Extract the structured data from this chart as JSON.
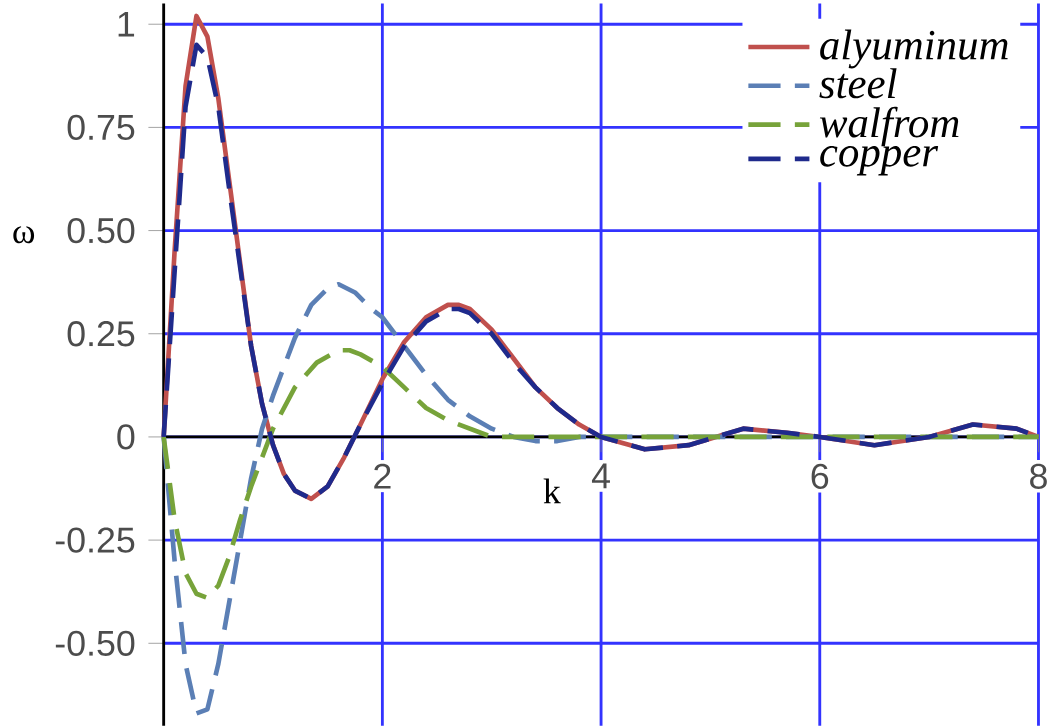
{
  "chart_data": {
    "type": "line",
    "xlabel": "k",
    "ylabel": "ω",
    "xlim": [
      0,
      8
    ],
    "ylim": [
      -0.7,
      1.05
    ],
    "xticks": [
      2,
      4,
      6,
      8
    ],
    "yticks": [
      1,
      0.75,
      {
        "value": 0.5,
        "label": "0.50"
      },
      0.25,
      0,
      -0.25,
      {
        "value": -0.5,
        "label": "-0.50"
      }
    ],
    "grid": true,
    "legend": "top right",
    "marker": "none",
    "series": [
      {
        "name": "alyuminum",
        "color": "#c0504d",
        "line_style": "solid",
        "x": [
          0,
          0.1,
          0.2,
          0.3,
          0.4,
          0.5,
          0.6,
          0.7,
          0.8,
          0.9,
          1.0,
          1.1,
          1.2,
          1.35,
          1.5,
          1.65,
          1.8,
          2.0,
          2.2,
          2.4,
          2.6,
          2.7,
          2.8,
          3.0,
          3.2,
          3.4,
          3.6,
          3.8,
          4.0,
          4.4,
          4.8,
          5.3,
          5.7,
          6.0,
          6.5,
          7.0,
          7.4,
          7.8,
          8.0
        ],
        "values": [
          0,
          0.45,
          0.85,
          1.02,
          0.97,
          0.82,
          0.62,
          0.42,
          0.22,
          0.08,
          -0.02,
          -0.09,
          -0.13,
          -0.15,
          -0.12,
          -0.05,
          0.03,
          0.14,
          0.23,
          0.29,
          0.32,
          0.32,
          0.31,
          0.26,
          0.19,
          0.12,
          0.07,
          0.03,
          0,
          -0.03,
          -0.02,
          0.02,
          0.01,
          0,
          -0.02,
          0,
          0.03,
          0.02,
          0
        ]
      },
      {
        "name": "steel",
        "color": "#5b7fb5",
        "line_style": "dashed",
        "x": [
          0,
          0.1,
          0.2,
          0.3,
          0.4,
          0.5,
          0.6,
          0.7,
          0.8,
          0.9,
          1.0,
          1.1,
          1.2,
          1.35,
          1.5,
          1.6,
          1.75,
          1.9,
          2.0,
          2.2,
          2.4,
          2.6,
          2.8,
          3.0,
          3.2,
          3.4,
          3.6,
          3.8,
          4.0,
          5,
          6,
          7,
          8
        ],
        "values": [
          0,
          -0.3,
          -0.55,
          -0.67,
          -0.66,
          -0.55,
          -0.4,
          -0.25,
          -0.1,
          0.02,
          0.1,
          0.17,
          0.24,
          0.32,
          0.36,
          0.37,
          0.35,
          0.31,
          0.29,
          0.22,
          0.15,
          0.09,
          0.05,
          0.02,
          0,
          -0.01,
          -0.01,
          0,
          0,
          0,
          0,
          0,
          0
        ]
      },
      {
        "name": "walfrom",
        "color": "#77a33a",
        "line_style": "dashed",
        "x": [
          0,
          0.1,
          0.2,
          0.3,
          0.4,
          0.5,
          0.6,
          0.7,
          0.8,
          0.9,
          1.0,
          1.2,
          1.4,
          1.6,
          1.7,
          1.8,
          2.0,
          2.2,
          2.4,
          2.6,
          2.8,
          3.0,
          3.5,
          4,
          5,
          6,
          7,
          8
        ],
        "values": [
          0,
          -0.2,
          -0.33,
          -0.38,
          -0.39,
          -0.36,
          -0.29,
          -0.2,
          -0.12,
          -0.05,
          0.02,
          0.12,
          0.18,
          0.21,
          0.21,
          0.2,
          0.17,
          0.12,
          0.07,
          0.04,
          0.02,
          0,
          0,
          0,
          0,
          0,
          0,
          0
        ]
      },
      {
        "name": "copper",
        "color": "#1f2a8c",
        "line_style": "dashed",
        "x": [
          0,
          0.1,
          0.2,
          0.3,
          0.4,
          0.5,
          0.6,
          0.7,
          0.8,
          0.9,
          1.0,
          1.1,
          1.2,
          1.35,
          1.5,
          1.65,
          1.8,
          2.0,
          2.2,
          2.4,
          2.6,
          2.7,
          2.8,
          3.0,
          3.2,
          3.4,
          3.6,
          3.8,
          4.0,
          4.4,
          4.8,
          5.3,
          5.7,
          6.0,
          6.5,
          7.0,
          7.4,
          7.8,
          8.0
        ],
        "values": [
          0,
          0.4,
          0.8,
          0.95,
          0.92,
          0.8,
          0.6,
          0.41,
          0.22,
          0.08,
          -0.02,
          -0.09,
          -0.13,
          -0.15,
          -0.12,
          -0.05,
          0.03,
          0.13,
          0.22,
          0.28,
          0.31,
          0.31,
          0.3,
          0.25,
          0.18,
          0.12,
          0.07,
          0.03,
          0,
          -0.03,
          -0.02,
          0.02,
          0.01,
          0,
          -0.02,
          0,
          0.03,
          0.02,
          0
        ]
      }
    ]
  }
}
